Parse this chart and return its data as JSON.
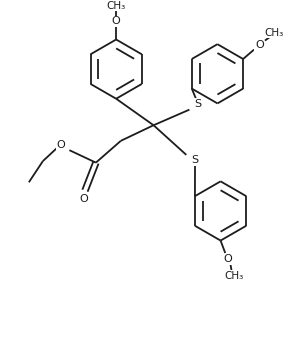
{
  "bg": "#ffffff",
  "lc": "#1c1c1c",
  "lw": 1.3,
  "fs": 8.0,
  "figsize": [
    3.04,
    3.45
  ],
  "dpi": 100,
  "xlim": [
    -0.5,
    8.5
  ],
  "ylim": [
    -1.5,
    9.5
  ]
}
